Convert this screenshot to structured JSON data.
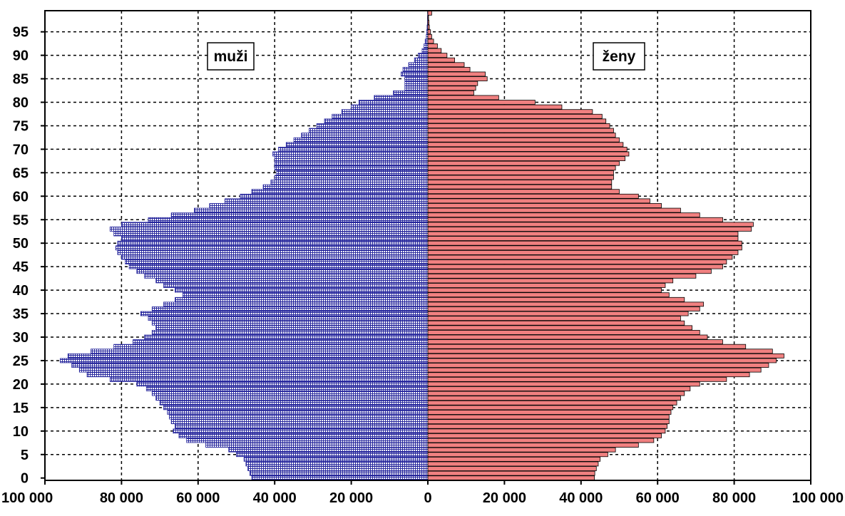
{
  "chart_data": {
    "type": "bar",
    "orientation": "horizontal",
    "title": "",
    "xlabel": "",
    "ylabel": "",
    "x_range": [
      -100000,
      100000
    ],
    "x_ticks": [
      -100000,
      -80000,
      -60000,
      -40000,
      -20000,
      0,
      20000,
      40000,
      60000,
      80000,
      100000
    ],
    "x_tick_labels": [
      "100 000",
      "80 000",
      "60 000",
      "40 000",
      "20 000",
      "0",
      "20 000",
      "40 000",
      "60 000",
      "80 000",
      "100 000"
    ],
    "y_range": [
      0,
      99
    ],
    "y_ticks": [
      0,
      5,
      10,
      15,
      20,
      25,
      30,
      35,
      40,
      45,
      50,
      55,
      60,
      65,
      70,
      75,
      80,
      85,
      90,
      95
    ],
    "y_tick_labels": [
      "0",
      "5",
      "10",
      "15",
      "20",
      "25",
      "30",
      "35",
      "40",
      "45",
      "50",
      "55",
      "60",
      "65",
      "70",
      "75",
      "80",
      "85",
      "90",
      "95"
    ],
    "grid": true,
    "categories_age": [
      0,
      1,
      2,
      3,
      4,
      5,
      6,
      7,
      8,
      9,
      10,
      11,
      12,
      13,
      14,
      15,
      16,
      17,
      18,
      19,
      20,
      21,
      22,
      23,
      24,
      25,
      26,
      27,
      28,
      29,
      30,
      31,
      32,
      33,
      34,
      35,
      36,
      37,
      38,
      39,
      40,
      41,
      42,
      43,
      44,
      45,
      46,
      47,
      48,
      49,
      50,
      51,
      52,
      53,
      54,
      55,
      56,
      57,
      58,
      59,
      60,
      61,
      62,
      63,
      64,
      65,
      66,
      67,
      68,
      69,
      70,
      71,
      72,
      73,
      74,
      75,
      76,
      77,
      78,
      79,
      80,
      81,
      82,
      83,
      84,
      85,
      86,
      87,
      88,
      89,
      90,
      91,
      92,
      93,
      94,
      95,
      96,
      97,
      98,
      99
    ],
    "series": [
      {
        "name": "muži",
        "color": "#3232a8",
        "values": [
          46000,
          46500,
          47000,
          47500,
          48000,
          50000,
          52000,
          58000,
          63000,
          65000,
          66500,
          66000,
          67000,
          67500,
          68000,
          69000,
          70000,
          71000,
          72000,
          73500,
          76000,
          83000,
          89000,
          91000,
          93000,
          96000,
          94000,
          88000,
          82000,
          77000,
          74000,
          72000,
          71000,
          72000,
          73000,
          75000,
          72000,
          69000,
          66000,
          64000,
          66000,
          69000,
          71000,
          74000,
          76000,
          78000,
          79000,
          80000,
          81000,
          81500,
          81000,
          80000,
          82000,
          83000,
          80000,
          73000,
          67000,
          61000,
          57000,
          53000,
          49000,
          46000,
          43000,
          41000,
          40000,
          39500,
          40000,
          40000,
          40000,
          40500,
          39000,
          37000,
          35000,
          33000,
          31000,
          29000,
          27000,
          25000,
          22500,
          20000,
          18000,
          14000,
          9000,
          6000,
          6000,
          6000,
          7000,
          6500,
          5000,
          3500,
          2500,
          1500,
          1000,
          700,
          400,
          300,
          200,
          100,
          80,
          50
        ]
      },
      {
        "name": "ženy",
        "color": "#f08080",
        "values": [
          43500,
          43600,
          44000,
          44500,
          45000,
          47000,
          49000,
          55000,
          59000,
          61000,
          62000,
          62500,
          63000,
          63000,
          63500,
          64000,
          65000,
          66000,
          67000,
          68500,
          71000,
          78000,
          84000,
          87000,
          89000,
          91000,
          93000,
          90000,
          83000,
          77000,
          73000,
          71000,
          69000,
          67000,
          66000,
          68000,
          71000,
          72000,
          67000,
          63000,
          61000,
          62000,
          64000,
          70000,
          74000,
          77000,
          78000,
          79500,
          81000,
          82000,
          82000,
          81000,
          81000,
          84500,
          85000,
          77000,
          71000,
          66000,
          61000,
          58000,
          55000,
          50000,
          48000,
          48000,
          48500,
          48500,
          49000,
          50000,
          51500,
          52500,
          52000,
          51000,
          50000,
          49000,
          48500,
          47500,
          46500,
          45500,
          43000,
          35000,
          28000,
          18500,
          12000,
          12500,
          13000,
          15500,
          15000,
          11000,
          9500,
          7000,
          5000,
          3500,
          2500,
          1500,
          1000,
          700,
          400,
          300,
          200,
          1000
        ]
      }
    ],
    "annotations": [
      {
        "text": "muži",
        "side": "left"
      },
      {
        "text": "ženy",
        "side": "right"
      }
    ]
  }
}
